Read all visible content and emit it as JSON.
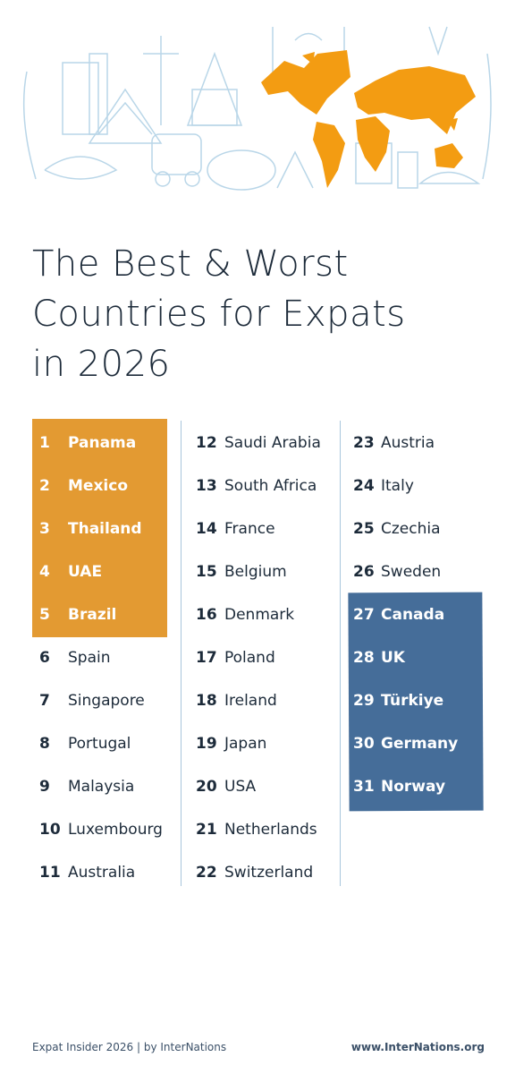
{
  "title_lines": [
    "The Best & Worst",
    "Countries for Expats",
    "in 2026"
  ],
  "columns": [
    [
      {
        "rank": "1",
        "country": "Panama"
      },
      {
        "rank": "2",
        "country": "Mexico"
      },
      {
        "rank": "3",
        "country": "Thailand"
      },
      {
        "rank": "4",
        "country": "UAE"
      },
      {
        "rank": "5",
        "country": "Brazil"
      },
      {
        "rank": "6",
        "country": "Spain"
      },
      {
        "rank": "7",
        "country": "Singapore"
      },
      {
        "rank": "8",
        "country": "Portugal"
      },
      {
        "rank": "9",
        "country": "Malaysia"
      },
      {
        "rank": "10",
        "country": "Luxembourg"
      },
      {
        "rank": "11",
        "country": "Australia"
      }
    ],
    [
      {
        "rank": "12",
        "country": "Saudi Arabia"
      },
      {
        "rank": "13",
        "country": "South Africa"
      },
      {
        "rank": "14",
        "country": "France"
      },
      {
        "rank": "15",
        "country": "Belgium"
      },
      {
        "rank": "16",
        "country": "Denmark"
      },
      {
        "rank": "17",
        "country": "Poland"
      },
      {
        "rank": "18",
        "country": "Ireland"
      },
      {
        "rank": "19",
        "country": "Japan"
      },
      {
        "rank": "20",
        "country": "USA"
      },
      {
        "rank": "21",
        "country": "Netherlands"
      },
      {
        "rank": "22",
        "country": "Switzerland"
      }
    ],
    [
      {
        "rank": "23",
        "country": "Austria"
      },
      {
        "rank": "24",
        "country": "Italy"
      },
      {
        "rank": "25",
        "country": "Czechia"
      },
      {
        "rank": "26",
        "country": "Sweden"
      },
      {
        "rank": "27",
        "country": "Canada"
      },
      {
        "rank": "28",
        "country": "UK"
      },
      {
        "rank": "29",
        "country": "Türkiye"
      },
      {
        "rank": "30",
        "country": "Germany"
      },
      {
        "rank": "31",
        "country": "Norway"
      }
    ]
  ],
  "footer": {
    "left": "Expat Insider 2026  |  by InterNations",
    "right": "www.InterNations.org"
  }
}
